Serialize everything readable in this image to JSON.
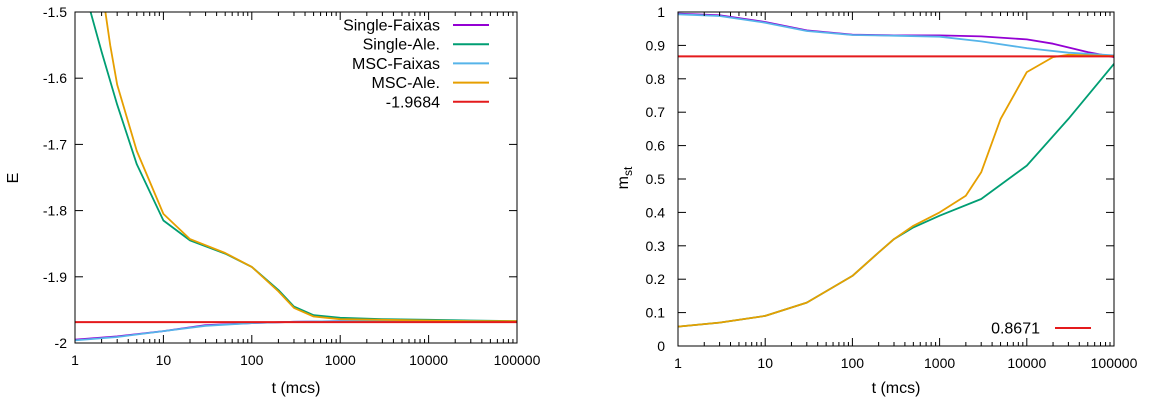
{
  "chart_data": [
    {
      "type": "line",
      "xlabel": "t (mcs)",
      "ylabel": "E",
      "xscale": "log",
      "xlim": [
        1,
        100000
      ],
      "ylim": [
        -2,
        -1.5
      ],
      "xticks": [
        1,
        10,
        100,
        1000,
        10000,
        100000
      ],
      "xtick_labels": [
        "1",
        "10",
        "100",
        "1000",
        "10000",
        "100000"
      ],
      "yticks": [
        -2,
        -1.9,
        -1.8,
        -1.7,
        -1.6,
        -1.5
      ],
      "ytick_labels": [
        "-2",
        "-1.9",
        "-1.8",
        "-1.7",
        "-1.6",
        "-1.5"
      ],
      "grid": false,
      "legend_position": "top-right",
      "series": [
        {
          "name": "Single-Faixas",
          "color": "#9400d3",
          "x": [
            1,
            3,
            10,
            30,
            100,
            300,
            1000,
            3000,
            10000,
            30000,
            100000
          ],
          "y": [
            -1.995,
            -1.99,
            -1.982,
            -1.973,
            -1.97,
            -1.968,
            -1.967,
            -1.967,
            -1.967,
            -1.968,
            -1.968
          ]
        },
        {
          "name": "Single-Ale.",
          "color": "#009e73",
          "x": [
            1,
            1.5,
            2,
            3,
            5,
            10,
            20,
            50,
            100,
            200,
            300,
            500,
            1000,
            3000,
            10000,
            30000,
            100000
          ],
          "y": [
            -1.44,
            -1.5,
            -1.56,
            -1.64,
            -1.73,
            -1.815,
            -1.845,
            -1.865,
            -1.885,
            -1.92,
            -1.945,
            -1.958,
            -1.962,
            -1.964,
            -1.965,
            -1.966,
            -1.967
          ]
        },
        {
          "name": "MSC-Faixas",
          "color": "#56b4e9",
          "x": [
            1,
            3,
            10,
            30,
            100,
            300,
            1000,
            3000,
            10000,
            30000,
            100000
          ],
          "y": [
            -1.996,
            -1.991,
            -1.982,
            -1.974,
            -1.97,
            -1.968,
            -1.967,
            -1.967,
            -1.967,
            -1.967,
            -1.968
          ]
        },
        {
          "name": "MSC-Ale.",
          "color": "#e69f00",
          "x": [
            1.9,
            2.5,
            3,
            5,
            10,
            20,
            50,
            100,
            200,
            300,
            500,
            1000,
            3000,
            10000,
            30000,
            100000
          ],
          "y": [
            -1.44,
            -1.55,
            -1.61,
            -1.71,
            -1.805,
            -1.843,
            -1.864,
            -1.885,
            -1.922,
            -1.947,
            -1.96,
            -1.964,
            -1.965,
            -1.966,
            -1.967,
            -1.967
          ]
        },
        {
          "name": "-1.9684",
          "color": "#e41a1c",
          "x": [
            1,
            100000
          ],
          "y": [
            -1.9684,
            -1.9684
          ]
        }
      ]
    },
    {
      "type": "line",
      "xlabel": "t (mcs)",
      "ylabel": "m",
      "ylabel_sub": "st",
      "xscale": "log",
      "xlim": [
        1,
        100000
      ],
      "ylim": [
        0,
        1
      ],
      "xticks": [
        1,
        10,
        100,
        1000,
        10000,
        100000
      ],
      "xtick_labels": [
        "1",
        "10",
        "100",
        "1000",
        "10000",
        "100000"
      ],
      "yticks": [
        0,
        0.1,
        0.2,
        0.3,
        0.4,
        0.5,
        0.6,
        0.7,
        0.8,
        0.9,
        1
      ],
      "ytick_labels": [
        "0",
        "0.1",
        "0.2",
        "0.3",
        "0.4",
        "0.5",
        "0.6",
        "0.7",
        "0.8",
        "0.9",
        "1"
      ],
      "grid": false,
      "legend_position": "bottom-right",
      "series": [
        {
          "name": "",
          "color": "#9400d3",
          "x": [
            1,
            3,
            10,
            30,
            100,
            300,
            1000,
            3000,
            10000,
            20000,
            50000,
            100000
          ],
          "y": [
            0.995,
            0.99,
            0.97,
            0.945,
            0.932,
            0.93,
            0.93,
            0.927,
            0.918,
            0.905,
            0.88,
            0.865
          ]
        },
        {
          "name": "",
          "color": "#009e73",
          "x": [
            1,
            3,
            10,
            30,
            100,
            200,
            300,
            500,
            1000,
            3000,
            10000,
            30000,
            100000
          ],
          "y": [
            0.058,
            0.07,
            0.09,
            0.13,
            0.21,
            0.28,
            0.32,
            0.355,
            0.39,
            0.44,
            0.54,
            0.68,
            0.845
          ]
        },
        {
          "name": "",
          "color": "#56b4e9",
          "x": [
            1,
            3,
            10,
            30,
            100,
            300,
            1000,
            3000,
            10000,
            30000,
            100000
          ],
          "y": [
            0.993,
            0.988,
            0.968,
            0.943,
            0.931,
            0.929,
            0.926,
            0.912,
            0.892,
            0.878,
            0.87
          ]
        },
        {
          "name": "",
          "color": "#e69f00",
          "x": [
            1,
            3,
            10,
            30,
            100,
            200,
            300,
            500,
            1000,
            2000,
            3000,
            5000,
            10000,
            20000,
            30000,
            100000
          ],
          "y": [
            0.058,
            0.07,
            0.09,
            0.13,
            0.21,
            0.28,
            0.32,
            0.36,
            0.4,
            0.45,
            0.52,
            0.68,
            0.82,
            0.865,
            0.872,
            0.868
          ]
        },
        {
          "name": "0.8671",
          "color": "#e41a1c",
          "x": [
            1,
            100000
          ],
          "y": [
            0.8671,
            0.8671
          ]
        }
      ]
    }
  ]
}
